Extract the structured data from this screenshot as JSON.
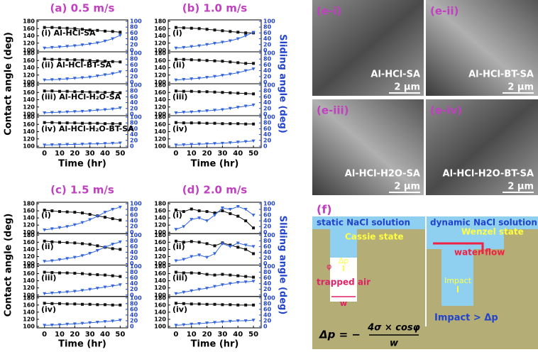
{
  "chart_data": [
    {
      "type": "line",
      "title": "(a) 0.5 m/s",
      "ylabel": "Contact angle (deg)",
      "xlabel": "Time (hr)",
      "x": [
        0,
        5,
        10,
        15,
        20,
        25,
        30,
        35,
        40,
        45,
        50
      ],
      "xlim": [
        -5,
        55
      ],
      "xticks": [
        0,
        10,
        20,
        30,
        40,
        50
      ],
      "ylim": [
        100,
        180
      ],
      "yticks": [
        100,
        120,
        140,
        160,
        180
      ],
      "y2lim": [
        0,
        100
      ],
      "y2ticks": [
        0,
        20,
        40,
        60,
        80,
        100
      ],
      "subplots": [
        {
          "label": "(i) Al-HCl-SA",
          "series": [
            {
              "color": "#111111",
              "marker": "square",
              "values": [
                163,
                163,
                162,
                161,
                160,
                158,
                156,
                155,
                153,
                152,
                150
              ]
            },
            {
              "color": "#3366dd",
              "marker": "triangle",
              "axis": "y2",
              "values": [
                8,
                10,
                12,
                14,
                16,
                19,
                22,
                26,
                32,
                40,
                52
              ]
            }
          ]
        },
        {
          "label": "(ii) Al-HCl-BT-SA",
          "series": [
            {
              "color": "#111111",
              "marker": "square",
              "values": [
                164,
                163,
                163,
                162,
                162,
                161,
                160,
                159,
                158,
                157,
                156
              ]
            },
            {
              "color": "#3366dd",
              "marker": "triangle",
              "axis": "y2",
              "values": [
                8,
                9,
                10,
                12,
                14,
                16,
                18,
                22,
                26,
                30,
                36
              ]
            }
          ]
        },
        {
          "label": "(iii) Al-HCl-H₂O-SA",
          "series": [
            {
              "color": "#111111",
              "marker": "square",
              "values": [
                164,
                164,
                163,
                163,
                162,
                162,
                161,
                161,
                160,
                160,
                159
              ]
            },
            {
              "color": "#3366dd",
              "marker": "triangle",
              "axis": "y2",
              "values": [
                5,
                6,
                7,
                8,
                9,
                10,
                12,
                14,
                16,
                18,
                22
              ]
            }
          ]
        },
        {
          "label": "(iv) Al-HCl-H₂O-BT-SA",
          "series": [
            {
              "color": "#111111",
              "marker": "square",
              "values": [
                165,
                165,
                164,
                164,
                164,
                163,
                163,
                163,
                162,
                162,
                162
              ]
            },
            {
              "color": "#3366dd",
              "marker": "triangle",
              "axis": "y2",
              "values": [
                4,
                5,
                5,
                6,
                6,
                7,
                8,
                8,
                9,
                10,
                11
              ]
            }
          ]
        }
      ]
    },
    {
      "type": "line",
      "title": "(b) 1.0 m/s",
      "y2label": "Sliding angle (deg)",
      "xlabel": "Time (hr)",
      "x": [
        0,
        5,
        10,
        15,
        20,
        25,
        30,
        35,
        40,
        45,
        50
      ],
      "xlim": [
        -5,
        55
      ],
      "xticks": [
        0,
        10,
        20,
        30,
        40,
        50
      ],
      "ylim": [
        100,
        180
      ],
      "yticks": [
        100,
        120,
        140,
        160,
        180
      ],
      "y2lim": [
        0,
        100
      ],
      "y2ticks": [
        0,
        20,
        40,
        60,
        80,
        100
      ],
      "subplots": [
        {
          "label": "(i)",
          "series": [
            {
              "color": "#111111",
              "marker": "square",
              "values": [
                163,
                162,
                161,
                160,
                158,
                156,
                154,
                152,
                150,
                148,
                148
              ]
            },
            {
              "color": "#3366dd",
              "marker": "triangle",
              "axis": "y2",
              "values": [
                8,
                10,
                13,
                16,
                20,
                24,
                28,
                33,
                40,
                50,
                62
              ]
            }
          ]
        },
        {
          "label": "(ii)",
          "series": [
            {
              "color": "#111111",
              "marker": "square",
              "values": [
                163,
                163,
                162,
                161,
                160,
                159,
                158,
                156,
                154,
                152,
                152
              ]
            },
            {
              "color": "#3366dd",
              "marker": "triangle",
              "axis": "y2",
              "values": [
                8,
                10,
                12,
                14,
                17,
                20,
                24,
                28,
                33,
                40,
                46
              ]
            }
          ]
        },
        {
          "label": "(iii)",
          "series": [
            {
              "color": "#111111",
              "marker": "square",
              "values": [
                164,
                163,
                163,
                162,
                162,
                161,
                160,
                159,
                158,
                157,
                156
              ]
            },
            {
              "color": "#3366dd",
              "marker": "triangle",
              "axis": "y2",
              "values": [
                5,
                7,
                8,
                10,
                12,
                14,
                16,
                20,
                24,
                28,
                32
              ]
            }
          ]
        },
        {
          "label": "(iv)",
          "series": [
            {
              "color": "#111111",
              "marker": "square",
              "values": [
                165,
                164,
                164,
                164,
                163,
                163,
                162,
                162,
                162,
                161,
                161
              ]
            },
            {
              "color": "#3366dd",
              "marker": "triangle",
              "axis": "y2",
              "values": [
                4,
                5,
                6,
                7,
                8,
                9,
                10,
                12,
                14,
                16,
                18
              ]
            }
          ]
        }
      ]
    },
    {
      "type": "line",
      "title": "(c) 1.5 m/s",
      "ylabel": "Contact angle (deg)",
      "xlabel": "Time (hr)",
      "x": [
        0,
        5,
        10,
        15,
        20,
        25,
        30,
        35,
        40,
        45,
        50
      ],
      "xlim": [
        -5,
        55
      ],
      "xticks": [
        0,
        10,
        20,
        30,
        40,
        50
      ],
      "ylim": [
        100,
        180
      ],
      "yticks": [
        100,
        120,
        140,
        160,
        180
      ],
      "y2lim": [
        0,
        100
      ],
      "y2ticks": [
        0,
        20,
        40,
        60,
        80,
        100
      ],
      "subplots": [
        {
          "label": "(i)",
          "series": [
            {
              "color": "#111111",
              "marker": "square",
              "values": [
                162,
                160,
                158,
                157,
                156,
                154,
                150,
                146,
                142,
                138,
                134
              ]
            },
            {
              "color": "#3366dd",
              "marker": "triangle",
              "axis": "y2",
              "values": [
                8,
                12,
                16,
                20,
                26,
                34,
                44,
                56,
                70,
                80,
                88
              ]
            }
          ]
        },
        {
          "label": "(ii)",
          "series": [
            {
              "color": "#111111",
              "marker": "square",
              "values": [
                163,
                161,
                160,
                159,
                158,
                156,
                154,
                150,
                146,
                142,
                140
              ]
            },
            {
              "color": "#3366dd",
              "marker": "triangle",
              "axis": "y2",
              "values": [
                8,
                10,
                14,
                18,
                22,
                28,
                36,
                46,
                58,
                68,
                76
              ]
            }
          ]
        },
        {
          "label": "(iii)",
          "series": [
            {
              "color": "#111111",
              "marker": "square",
              "values": [
                164,
                163,
                162,
                162,
                161,
                160,
                158,
                157,
                156,
                154,
                152
              ]
            },
            {
              "color": "#3366dd",
              "marker": "triangle",
              "axis": "y2",
              "values": [
                5,
                7,
                9,
                11,
                13,
                16,
                20,
                24,
                28,
                32,
                36
              ]
            }
          ]
        },
        {
          "label": "(iv)",
          "series": [
            {
              "color": "#111111",
              "marker": "square",
              "values": [
                165,
                164,
                164,
                163,
                163,
                162,
                162,
                161,
                161,
                160,
                160
              ]
            },
            {
              "color": "#3366dd",
              "marker": "triangle",
              "axis": "y2",
              "values": [
                4,
                5,
                6,
                8,
                9,
                11,
                13,
                15,
                17,
                19,
                22
              ]
            }
          ]
        }
      ]
    },
    {
      "type": "line",
      "title": "(d) 2.0 m/s",
      "y2label": "Sliding angle (deg)",
      "xlabel": "Time (hr)",
      "x": [
        0,
        5,
        10,
        15,
        20,
        25,
        30,
        35,
        40,
        45,
        50
      ],
      "xlim": [
        -5,
        55
      ],
      "xticks": [
        0,
        10,
        20,
        30,
        40,
        50
      ],
      "ylim": [
        100,
        180
      ],
      "yticks": [
        100,
        120,
        140,
        160,
        180
      ],
      "y2lim": [
        0,
        100
      ],
      "y2ticks": [
        0,
        20,
        40,
        60,
        80,
        100
      ],
      "subplots": [
        {
          "label": "(i)",
          "series": [
            {
              "color": "#111111",
              "marker": "square",
              "values": [
                162,
                158,
                165,
                160,
                158,
                154,
                160,
                152,
                145,
                132,
                112
              ]
            },
            {
              "color": "#3366dd",
              "marker": "triangle",
              "axis": "y2",
              "values": [
                10,
                20,
                45,
                50,
                40,
                60,
                85,
                80,
                90,
                80,
                60
              ]
            }
          ]
        },
        {
          "label": "(ii)",
          "series": [
            {
              "color": "#111111",
              "marker": "square",
              "values": [
                163,
                160,
                162,
                160,
                156,
                150,
                158,
                152,
                146,
                140,
                128
              ]
            },
            {
              "color": "#3366dd",
              "marker": "triangle",
              "axis": "y2",
              "values": [
                10,
                15,
                25,
                30,
                22,
                35,
                70,
                60,
                72,
                65,
                60
              ]
            }
          ]
        },
        {
          "label": "(iii)",
          "series": [
            {
              "color": "#111111",
              "marker": "square",
              "values": [
                164,
                162,
                162,
                161,
                158,
                156,
                158,
                156,
                154,
                152,
                150
              ]
            },
            {
              "color": "#3366dd",
              "marker": "triangle",
              "axis": "y2",
              "values": [
                5,
                10,
                15,
                20,
                24,
                30,
                36,
                40,
                44,
                46,
                48
              ]
            }
          ]
        },
        {
          "label": "(iv)",
          "series": [
            {
              "color": "#111111",
              "marker": "square",
              "values": [
                165,
                164,
                163,
                163,
                162,
                162,
                161,
                161,
                160,
                160,
                160
              ]
            },
            {
              "color": "#3366dd",
              "marker": "triangle",
              "axis": "y2",
              "values": [
                4,
                6,
                8,
                10,
                12,
                14,
                16,
                18,
                20,
                20,
                22
              ]
            }
          ]
        }
      ]
    }
  ],
  "images": [
    {
      "label": "(e-i)",
      "caption": "Al-HCl-SA",
      "scale": "2 μm"
    },
    {
      "label": "(e-ii)",
      "caption": "Al-HCl-BT-SA",
      "scale": "2 μm"
    },
    {
      "label": "(e-iii)",
      "caption": "Al-HCl-H2O-SA",
      "scale": "2 μm"
    },
    {
      "label": "(e-iv)",
      "caption": "Al-HCl-H2O-BT-SA",
      "scale": "2 μm"
    }
  ],
  "diagram": {
    "label": "(f)",
    "static": "static NaCl solution",
    "cassie": "Cassie state",
    "dp": "Δp",
    "phi": "φ",
    "air": "trapped air",
    "w": "w",
    "dynamic": "dynamic NaCl solution",
    "wenzel": "Wenzel state",
    "flow": "water flow",
    "impact": "Impact",
    "compare": "Impact > Δp",
    "equation": {
      "lhs": "Δp = −",
      "numerator": "4σ × cosφ",
      "denominator": "w"
    }
  }
}
